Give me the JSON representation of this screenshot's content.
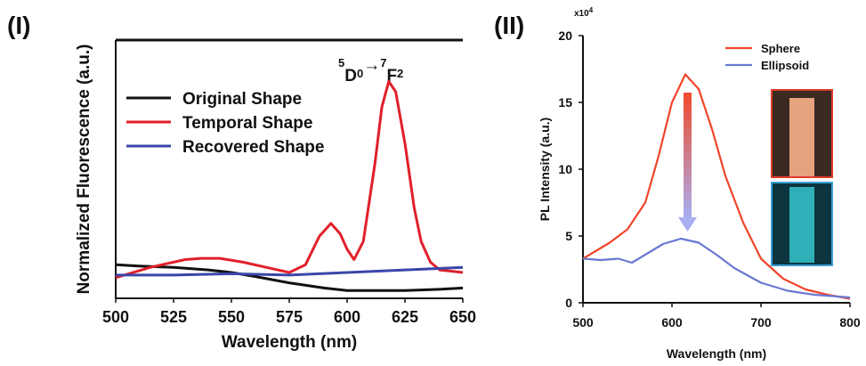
{
  "chart_data": [
    {
      "type": "line",
      "panel_label": "(I)",
      "x_label": "Wavelength (nm)",
      "y_label": "Normalized Fluorescence (a.u.)",
      "annotation": [
        "5",
        "D",
        "0",
        "→",
        "7",
        "F",
        "2"
      ],
      "xlim": [
        500,
        650
      ],
      "xticks": [
        500,
        525,
        550,
        575,
        600,
        625,
        650
      ],
      "ylim": [
        0,
        1
      ],
      "legend": "upper left",
      "series": [
        {
          "name": "Original Shape",
          "color": "#111111",
          "x": [
            500,
            510,
            525,
            540,
            550,
            560,
            575,
            590,
            600,
            612,
            625,
            640,
            650
          ],
          "values": [
            0.13,
            0.125,
            0.12,
            0.11,
            0.1,
            0.085,
            0.06,
            0.04,
            0.03,
            0.03,
            0.03,
            0.035,
            0.04
          ]
        },
        {
          "name": "Temporal Shape",
          "color": "#e0202a",
          "x": [
            500,
            515,
            530,
            537,
            545,
            555,
            565,
            575,
            582,
            588,
            593,
            597,
            600,
            603,
            607,
            612,
            615,
            618,
            621,
            625,
            629,
            632,
            636,
            640,
            650
          ],
          "values": [
            0.08,
            0.12,
            0.15,
            0.155,
            0.155,
            0.14,
            0.12,
            0.1,
            0.13,
            0.24,
            0.29,
            0.25,
            0.19,
            0.15,
            0.22,
            0.52,
            0.74,
            0.84,
            0.8,
            0.6,
            0.35,
            0.22,
            0.14,
            0.11,
            0.1
          ]
        },
        {
          "name": "Recovered Shape",
          "color": "#3b46a8",
          "x": [
            500,
            525,
            550,
            575,
            600,
            625,
            650
          ],
          "values": [
            0.09,
            0.09,
            0.095,
            0.09,
            0.1,
            0.11,
            0.12
          ]
        }
      ]
    },
    {
      "type": "line",
      "panel_label": "(II)",
      "x_label": "Wavelength (nm)",
      "y_label": "PL Intensity (a.u.)",
      "y_multiplier": [
        "x10",
        "4"
      ],
      "xlim": [
        500,
        800
      ],
      "xticks": [
        500,
        600,
        700,
        800
      ],
      "ylim": [
        0,
        20
      ],
      "yticks": [
        0,
        5,
        10,
        15,
        20
      ],
      "legend": "upper right",
      "series": [
        {
          "name": "Sphere",
          "color": "#f0452a",
          "x": [
            500,
            530,
            550,
            570,
            585,
            600,
            615,
            630,
            645,
            660,
            680,
            700,
            725,
            750,
            775,
            800
          ],
          "values": [
            3.3,
            4.5,
            5.5,
            7.5,
            11,
            15,
            17.1,
            16,
            13,
            9.5,
            6,
            3.3,
            1.8,
            1.0,
            0.6,
            0.3
          ]
        },
        {
          "name": "Ellipsoid",
          "color": "#6a78d2",
          "x": [
            500,
            520,
            540,
            555,
            570,
            590,
            610,
            630,
            650,
            670,
            700,
            730,
            760,
            800
          ],
          "values": [
            3.3,
            3.2,
            3.3,
            3.0,
            3.6,
            4.4,
            4.8,
            4.5,
            3.6,
            2.6,
            1.5,
            0.9,
            0.6,
            0.4
          ]
        }
      ]
    }
  ]
}
